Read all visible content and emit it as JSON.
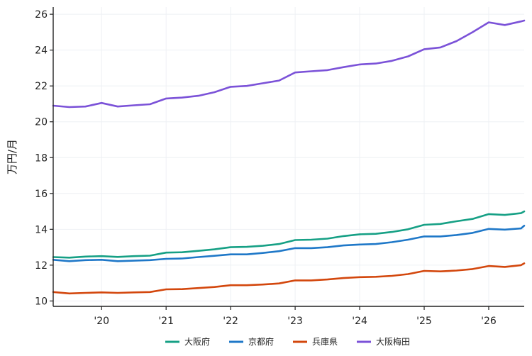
{
  "chart_data": {
    "type": "line",
    "title": "",
    "xlabel": "",
    "ylabel": "万円/月",
    "xlim": [
      2019.25,
      2026.55
    ],
    "ylim": [
      9.7,
      26.4
    ],
    "yticks": [
      10,
      12,
      14,
      16,
      18,
      20,
      22,
      24,
      26
    ],
    "xticks": [
      {
        "value": 2020,
        "label": "'20"
      },
      {
        "value": 2021,
        "label": "'21"
      },
      {
        "value": 2022,
        "label": "'22"
      },
      {
        "value": 2023,
        "label": "'23"
      },
      {
        "value": 2024,
        "label": "'24"
      },
      {
        "value": 2025,
        "label": "'25"
      },
      {
        "value": 2026,
        "label": "'26"
      }
    ],
    "grid": true,
    "legend_position": "bottom-center",
    "x": [
      2019.25,
      2019.5,
      2019.75,
      2020.0,
      2020.25,
      2020.5,
      2020.75,
      2021.0,
      2021.25,
      2021.5,
      2021.75,
      2022.0,
      2022.25,
      2022.5,
      2022.75,
      2023.0,
      2023.25,
      2023.5,
      2023.75,
      2024.0,
      2024.25,
      2024.5,
      2024.75,
      2025.0,
      2025.25,
      2025.5,
      2025.75,
      2026.0,
      2026.25,
      2026.5,
      2026.55
    ],
    "series": [
      {
        "name": "大阪府",
        "color": "#16a085",
        "values": [
          12.45,
          12.42,
          12.48,
          12.5,
          12.46,
          12.5,
          12.53,
          12.7,
          12.72,
          12.8,
          12.88,
          13.0,
          13.02,
          13.08,
          13.18,
          13.4,
          13.42,
          13.48,
          13.62,
          13.72,
          13.75,
          13.85,
          14.0,
          14.25,
          14.3,
          14.45,
          14.58,
          14.85,
          14.8,
          14.9,
          15.0
        ]
      },
      {
        "name": "京都府",
        "color": "#1f78c8",
        "values": [
          12.3,
          12.22,
          12.28,
          12.3,
          12.22,
          12.25,
          12.28,
          12.35,
          12.37,
          12.45,
          12.52,
          12.6,
          12.6,
          12.68,
          12.78,
          12.95,
          12.95,
          13.0,
          13.1,
          13.15,
          13.18,
          13.28,
          13.42,
          13.6,
          13.6,
          13.68,
          13.8,
          14.02,
          13.98,
          14.05,
          14.2
        ]
      },
      {
        "name": "兵庫県",
        "color": "#d3470d",
        "values": [
          10.5,
          10.42,
          10.45,
          10.48,
          10.45,
          10.48,
          10.5,
          10.65,
          10.66,
          10.72,
          10.78,
          10.88,
          10.88,
          10.92,
          10.98,
          11.15,
          11.15,
          11.2,
          11.28,
          11.33,
          11.35,
          11.4,
          11.5,
          11.68,
          11.65,
          11.7,
          11.78,
          11.95,
          11.9,
          12.0,
          12.1
        ]
      },
      {
        "name": "大阪梅田",
        "color": "#7b52d8",
        "values": [
          20.9,
          20.82,
          20.85,
          21.05,
          20.85,
          20.92,
          20.98,
          21.3,
          21.35,
          21.45,
          21.65,
          21.95,
          22.0,
          22.15,
          22.3,
          22.75,
          22.82,
          22.88,
          23.05,
          23.2,
          23.25,
          23.4,
          23.65,
          24.05,
          24.15,
          24.5,
          25.0,
          25.55,
          25.4,
          25.6,
          25.65
        ]
      }
    ]
  }
}
